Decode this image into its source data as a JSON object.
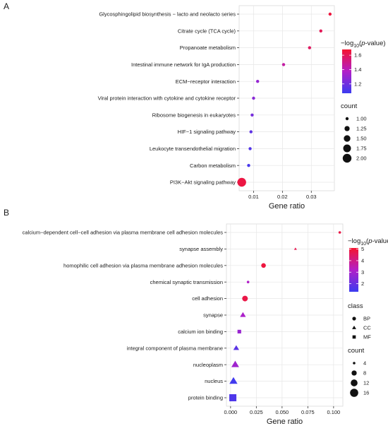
{
  "panels": [
    {
      "letter": "A",
      "xlabel": "Gene ratio",
      "xlim": [
        0.005,
        0.038
      ],
      "xticks": [
        0.01,
        0.02,
        0.03
      ],
      "xtick_labels": [
        "0.01",
        "0.02",
        "0.03"
      ],
      "color_legend": {
        "title_prefix": "−log",
        "title_sub": "10",
        "title_mid": "(",
        "title_ital": "p",
        "title_suffix": "-value)",
        "range": [
          1.07,
          1.68
        ],
        "ticks": [
          1.2,
          1.4,
          1.6
        ],
        "tick_labels": [
          "1.2",
          "1.4",
          "1.6"
        ]
      },
      "size_legend": {
        "title": "count",
        "values": [
          1.0,
          1.25,
          1.5,
          1.75,
          2.0
        ],
        "labels": [
          "1.00",
          "1.25",
          "1.50",
          "1.75",
          "2.00"
        ]
      }
    },
    {
      "letter": "B",
      "xlabel": "Gene ratio",
      "xlim": [
        -0.004,
        0.109
      ],
      "xticks": [
        0.0,
        0.025,
        0.05,
        0.075,
        0.1
      ],
      "xtick_labels": [
        "0.000",
        "0.025",
        "0.050",
        "0.075",
        "0.100"
      ],
      "color_legend": {
        "title_prefix": "−log",
        "title_sub": "10",
        "title_mid": "(",
        "title_ital": "p",
        "title_suffix": "-value)",
        "range": [
          1.3,
          5.1
        ],
        "ticks": [
          2,
          3,
          4,
          5
        ],
        "tick_labels": [
          "2",
          "3",
          "4",
          "5"
        ]
      },
      "shape_legend": {
        "title": "class",
        "items": [
          {
            "shape": "circle",
            "label": "BP"
          },
          {
            "shape": "triangle",
            "label": "CC"
          },
          {
            "shape": "square",
            "label": "MF"
          }
        ]
      },
      "size_legend": {
        "title": "count",
        "values": [
          4,
          8,
          12,
          16
        ],
        "labels": [
          "4",
          "8",
          "12",
          "16"
        ]
      }
    }
  ],
  "chart_data": [
    {
      "type": "scatter",
      "title": "",
      "xlabel": "Gene ratio",
      "ylabel": "",
      "grid": true,
      "xlim": [
        0.005,
        0.038
      ],
      "categories": [
        "Glycosphingolipid biosynthesis − lacto and neolacto series",
        "Citrate cycle (TCA cycle)",
        "Propanoate metabolism",
        "Intestinal immune network for IgA production",
        "ECM−receptor interaction",
        "Viral protein interaction with cytokine and cytokine receptor",
        "Ribosome biogenesis in eukaryotes",
        "HIF−1 signaling pathway",
        "Leukocyte transendothelial migration",
        "Carbon metabolism",
        "PI3K−Akt signaling pathway"
      ],
      "x": [
        0.0365,
        0.0333,
        0.0294,
        0.0204,
        0.0114,
        0.01,
        0.0095,
        0.0091,
        0.0088,
        0.0083,
        0.0059
      ],
      "neg_log10_p": [
        1.65,
        1.6,
        1.58,
        1.45,
        1.3,
        1.27,
        1.22,
        1.16,
        1.13,
        1.1,
        1.64
      ],
      "count": [
        1,
        1,
        1,
        1,
        1,
        1,
        1,
        1,
        1,
        1,
        2
      ]
    },
    {
      "type": "scatter",
      "title": "",
      "xlabel": "Gene ratio",
      "ylabel": "",
      "grid": true,
      "xlim": [
        -0.004,
        0.109
      ],
      "categories": [
        "calcium−dependent cell−cell adhesion via plasma membrane cell adhesion molecules",
        "synapse assembly",
        "homophilic cell adhesion via plasma membrane adhesion molecules",
        "chemical synaptic transmission",
        "cell adhesion",
        "synapse",
        "calcium ion binding",
        "integral component of plasma membrane",
        "nucleoplasm",
        "nucleus",
        "protein binding"
      ],
      "x": [
        0.106,
        0.063,
        0.032,
        0.017,
        0.014,
        0.012,
        0.0085,
        0.0055,
        0.0045,
        0.0028,
        0.0022
      ],
      "neg_log10_p": [
        4.8,
        4.7,
        4.9,
        3.2,
        4.8,
        3.1,
        2.8,
        1.8,
        2.9,
        1.4,
        1.6
      ],
      "class": [
        "BP",
        "CC",
        "BP",
        "BP",
        "BP",
        "CC",
        "MF",
        "CC",
        "CC",
        "CC",
        "MF"
      ],
      "count": [
        3,
        3,
        7,
        3,
        9,
        8,
        6,
        8,
        12,
        13,
        15
      ]
    }
  ]
}
